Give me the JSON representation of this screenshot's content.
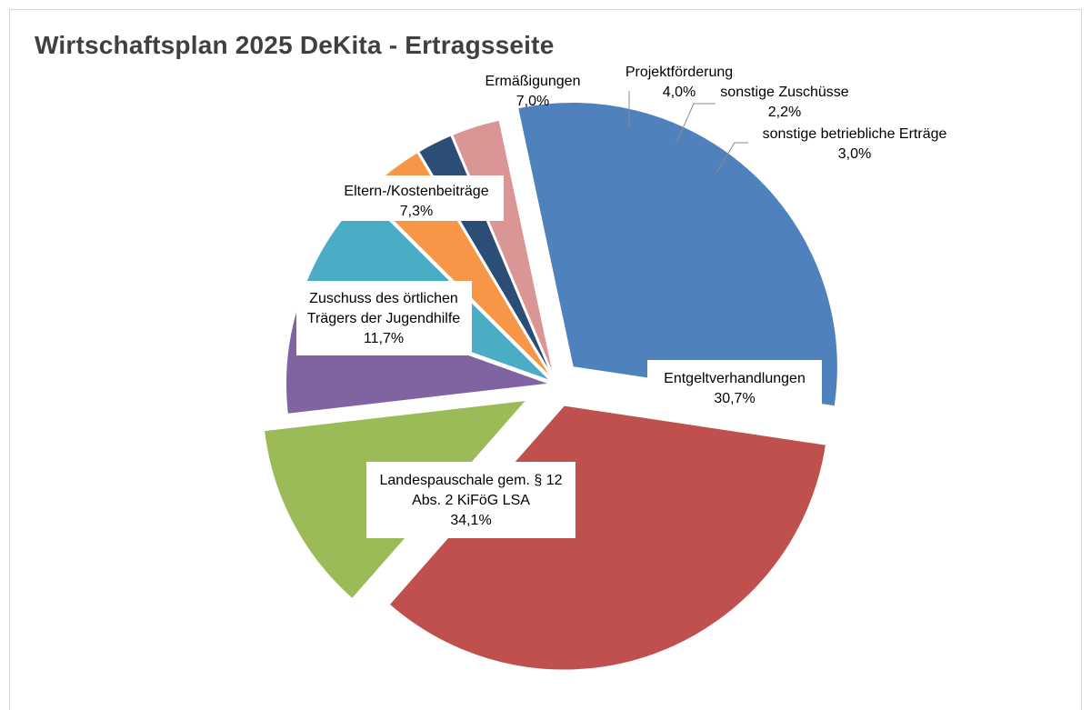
{
  "chart_data": {
    "type": "pie",
    "title": "Wirtschaftsplan 2025 DeKita - Ertragsseite",
    "slices": [
      {
        "name": "Entgeltverhandlungen",
        "percent_label": "30,7%",
        "value": 30.7,
        "color": "#4f81bd"
      },
      {
        "name": "Landespauschale gem. § 12 Abs. 2 KiFöG LSA",
        "lines": [
          "Landespauschale gem. § 12",
          "Abs. 2 KiFöG LSA"
        ],
        "percent_label": "34,1%",
        "value": 34.1,
        "color": "#c0504d"
      },
      {
        "name": "Zuschuss des örtlichen Trägers der Jugendhilfe",
        "lines": [
          "Zuschuss des örtlichen",
          "Trägers der Jugendhilfe"
        ],
        "percent_label": "11,7%",
        "value": 11.7,
        "color": "#9bbb59"
      },
      {
        "name": "Eltern-/Kostenbeiträge",
        "percent_label": "7,3%",
        "value": 7.3,
        "color": "#8064a2"
      },
      {
        "name": "Ermäßigungen",
        "percent_label": "7,0%",
        "value": 7.0,
        "color": "#4bacc6"
      },
      {
        "name": "Projektförderung",
        "percent_label": "4,0%",
        "value": 4.0,
        "color": "#f79646"
      },
      {
        "name": "sonstige Zuschüsse",
        "percent_label": "2,2%",
        "value": 2.2,
        "color": "#2c4d75"
      },
      {
        "name": "sonstige betriebliche Erträge",
        "percent_label": "3,0%",
        "value": 3.0,
        "color": "#d99694"
      }
    ]
  }
}
